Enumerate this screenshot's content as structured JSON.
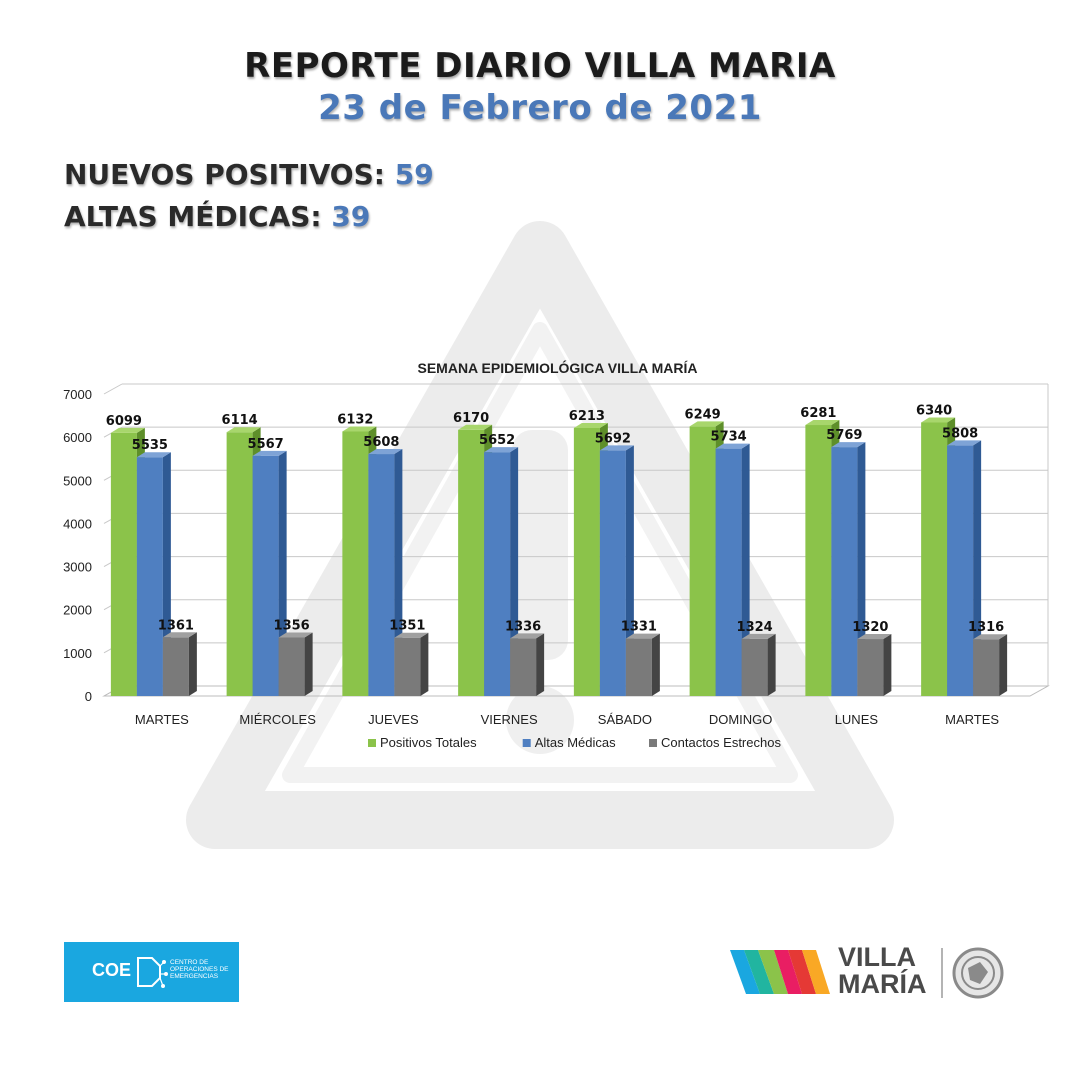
{
  "header": {
    "title": "REPORTE DIARIO VILLA MARIA",
    "date": "23 de Febrero de 2021"
  },
  "stats": {
    "positives_label": "NUEVOS POSITIVOS:",
    "positives_value": "59",
    "discharges_label": "ALTAS MÉDICAS:",
    "discharges_value": "39"
  },
  "colors": {
    "accent_blue": "#4a78b8",
    "series_green": "#8bc34a",
    "series_blue": "#4f7fc1",
    "series_gray": "#7a7a7a",
    "coe_blue": "#1aa7e0"
  },
  "chart_data": {
    "type": "bar",
    "title": "SEMANA EPIDEMIOLÓGICA VILLA MARÍA",
    "categories": [
      "MARTES",
      "MIÉRCOLES",
      "JUEVES",
      "VIERNES",
      "SÁBADO",
      "DOMINGO",
      "LUNES",
      "MARTES"
    ],
    "series": [
      {
        "name": "Positivos Totales",
        "values": [
          6099,
          6114,
          6132,
          6170,
          6213,
          6249,
          6281,
          6340
        ]
      },
      {
        "name": "Altas Médicas",
        "values": [
          5535,
          5567,
          5608,
          5652,
          5692,
          5734,
          5769,
          5808
        ]
      },
      {
        "name": "Contactos Estrechos",
        "values": [
          1361,
          1356,
          1351,
          1336,
          1331,
          1324,
          1320,
          1316
        ]
      }
    ],
    "ylim": [
      0,
      7000
    ],
    "yticks": [
      0,
      1000,
      2000,
      3000,
      4000,
      5000,
      6000,
      7000
    ],
    "grid": true,
    "legend_position": "bottom",
    "style": "3d"
  },
  "logos": {
    "coe_text": "COE",
    "coe_subtitle": "CENTRO DE\nOPERACIONES DE\nEMERGENCIAS",
    "villa_maria_text": "VILLA\nMARÍA"
  }
}
